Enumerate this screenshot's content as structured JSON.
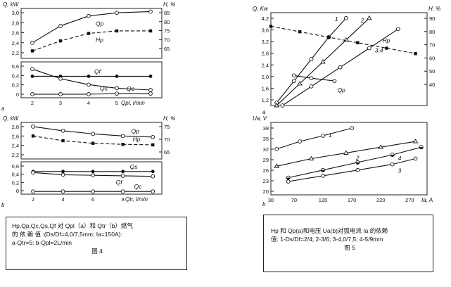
{
  "figure4_caption": {
    "line1": "Hp,Qp,Qc,Qs,Qf 对 Qpl（a）和 Qtr（b）燃气",
    "line2": "的 依 赖 值 :(Ds/Df=4,0/7,5mm;    Ia=150A):",
    "line3": "a-Qtr=5; b-Qpl=2L/min",
    "fig_label": "图 4"
  },
  "figure5_caption": {
    "line1": "Hp 和 Qp(a)和电压 Ua(b)对弧电流 Ia 的依赖",
    "line2": "值: 1-Ds/Df=2/4; 2-3/6; 3-4,0/7,5; 4-5/9mm",
    "fig_label": "图 5"
  },
  "chart_data": [
    {
      "id": "fig4a-top",
      "type": "line",
      "ylabel_left": "Q, kW",
      "ylabel_right": "H, %",
      "yticks_left": [
        "3,0",
        "2,8",
        "2,6",
        "2,4",
        "2,2"
      ],
      "yticks_right": [
        "85",
        "80",
        "75",
        "70",
        "65"
      ],
      "ylim_left": [
        2.2,
        3.0
      ],
      "series": [
        {
          "name": "Qp",
          "style": "solid-circle-open",
          "x": [
            2,
            3,
            4,
            5,
            6.2
          ],
          "y": [
            2.45,
            2.72,
            2.88,
            2.93,
            2.95
          ]
        },
        {
          "name": "Hp",
          "style": "dashed-square",
          "x": [
            2,
            3,
            4,
            5,
            6.2
          ],
          "y": [
            2.32,
            2.48,
            2.6,
            2.64,
            2.64
          ]
        }
      ]
    },
    {
      "id": "fig4a-bottom",
      "type": "line",
      "ylabel_left": "",
      "yticks_left": [
        "0,6",
        "0,4",
        "0,2",
        "0"
      ],
      "ylim_left": [
        0,
        0.6
      ],
      "xlabel": "Qpl, l/min",
      "xticks": [
        "2",
        "3",
        "4",
        "5"
      ],
      "panel_letter": "a",
      "series": [
        {
          "name": "Qf",
          "x": [
            2,
            3,
            4,
            5,
            6.2
          ],
          "y": [
            0.36,
            0.36,
            0.36,
            0.36,
            0.36
          ]
        },
        {
          "name": "Qs",
          "x": [
            2,
            3,
            4,
            5,
            6.2
          ],
          "y": [
            0.48,
            0.32,
            0.22,
            0.16,
            0.13
          ]
        },
        {
          "name": "Qc",
          "x": [
            2,
            3,
            4,
            5,
            6.2
          ],
          "y": [
            0.06,
            0.06,
            0.06,
            0.07,
            0.07
          ]
        }
      ]
    },
    {
      "id": "fig4b-top",
      "type": "line",
      "ylabel_left": "Q, kW",
      "ylabel_right": "H, %",
      "yticks_left": [
        "2,8",
        "2,6",
        "2,4",
        "2,2"
      ],
      "yticks_right": [
        "75",
        "70",
        "65"
      ],
      "ylim_left": [
        2.2,
        2.9
      ],
      "series": [
        {
          "name": "Qp",
          "x": [
            2,
            4,
            6,
            8,
            10
          ],
          "y": [
            2.82,
            2.74,
            2.68,
            2.64,
            2.62
          ]
        },
        {
          "name": "Hp",
          "x": [
            2,
            4,
            6,
            8,
            10
          ],
          "y": [
            2.64,
            2.55,
            2.5,
            2.48,
            2.47
          ]
        }
      ]
    },
    {
      "id": "fig4b-bottom",
      "type": "line",
      "yticks_left": [
        "0,6",
        "0,4",
        "0,2",
        "0"
      ],
      "ylim_left": [
        0,
        0.6
      ],
      "xlabel": "Qtr, l/min",
      "xticks": [
        "2",
        "4",
        "6",
        "8"
      ],
      "panel_letter": "b",
      "series": [
        {
          "name": "Qs",
          "x": [
            2,
            4,
            6,
            8,
            10
          ],
          "y": [
            0.42,
            0.42,
            0.42,
            0.42,
            0.42
          ]
        },
        {
          "name": "Qf",
          "x": [
            2,
            4,
            6,
            8,
            10
          ],
          "y": [
            0.4,
            0.36,
            0.35,
            0.34,
            0.33
          ]
        },
        {
          "name": "Qc",
          "x": [
            2,
            4,
            6,
            8,
            10
          ],
          "y": [
            0.05,
            0.05,
            0.05,
            0.05,
            0.05
          ]
        }
      ]
    },
    {
      "id": "fig5a",
      "type": "line",
      "ylabel_left": "Q, Kw",
      "ylabel_right": "H, %",
      "yticks_left": [
        "4,2",
        "3,6",
        "3,2",
        "2,8",
        "2,4",
        "2,0",
        "1,6",
        "1,2"
      ],
      "yticks_right": [
        "90",
        "80",
        "70",
        "60",
        "50",
        "40"
      ],
      "ylim_left": [
        1.0,
        4.4
      ],
      "panel_letter": "a",
      "series": [
        {
          "name": "1",
          "x": [
            40,
            70,
            100,
            130,
            160
          ],
          "y": [
            1.1,
            1.9,
            2.7,
            3.5,
            4.2
          ]
        },
        {
          "name": "2",
          "x": [
            40,
            80,
            120,
            160,
            200
          ],
          "y": [
            1.0,
            1.8,
            2.6,
            3.4,
            4.2
          ]
        },
        {
          "name": "3,4",
          "x": [
            50,
            100,
            150,
            200,
            250
          ],
          "y": [
            1.0,
            1.7,
            2.4,
            3.1,
            3.8
          ]
        },
        {
          "name": "Hp",
          "x": [
            30,
            80,
            130,
            180,
            230,
            280
          ],
          "y": [
            3.9,
            3.7,
            3.5,
            3.3,
            3.1,
            2.9
          ]
        },
        {
          "name": "Qp",
          "x": [
            70,
            100,
            140
          ],
          "y": [
            2.1,
            2.0,
            1.9
          ]
        }
      ]
    },
    {
      "id": "fig5b",
      "type": "line",
      "ylabel_left": "Ua, V",
      "yticks_left": [
        "38",
        "35",
        "32",
        "29",
        "26",
        "23",
        "20"
      ],
      "ylim_left": [
        20,
        39
      ],
      "xlabel": "Ia, A",
      "xticks": [
        "30",
        "70",
        "120",
        "170",
        "220",
        "270"
      ],
      "panel_letter": "b",
      "series": [
        {
          "name": "1",
          "x": [
            40,
            80,
            120,
            170
          ],
          "y": [
            32,
            34,
            35.5,
            37.5
          ]
        },
        {
          "name": "2",
          "x": [
            40,
            100,
            160,
            220,
            280
          ],
          "y": [
            27.5,
            29.5,
            31,
            32.5,
            34
          ]
        },
        {
          "name": "4",
          "x": [
            60,
            120,
            180,
            240,
            290
          ],
          "y": [
            24.5,
            26.5,
            28.5,
            30.5,
            32.5
          ]
        },
        {
          "name": "3",
          "x": [
            60,
            120,
            180,
            240,
            280
          ],
          "y": [
            23.5,
            25,
            26.5,
            28,
            29.5
          ]
        }
      ]
    }
  ]
}
